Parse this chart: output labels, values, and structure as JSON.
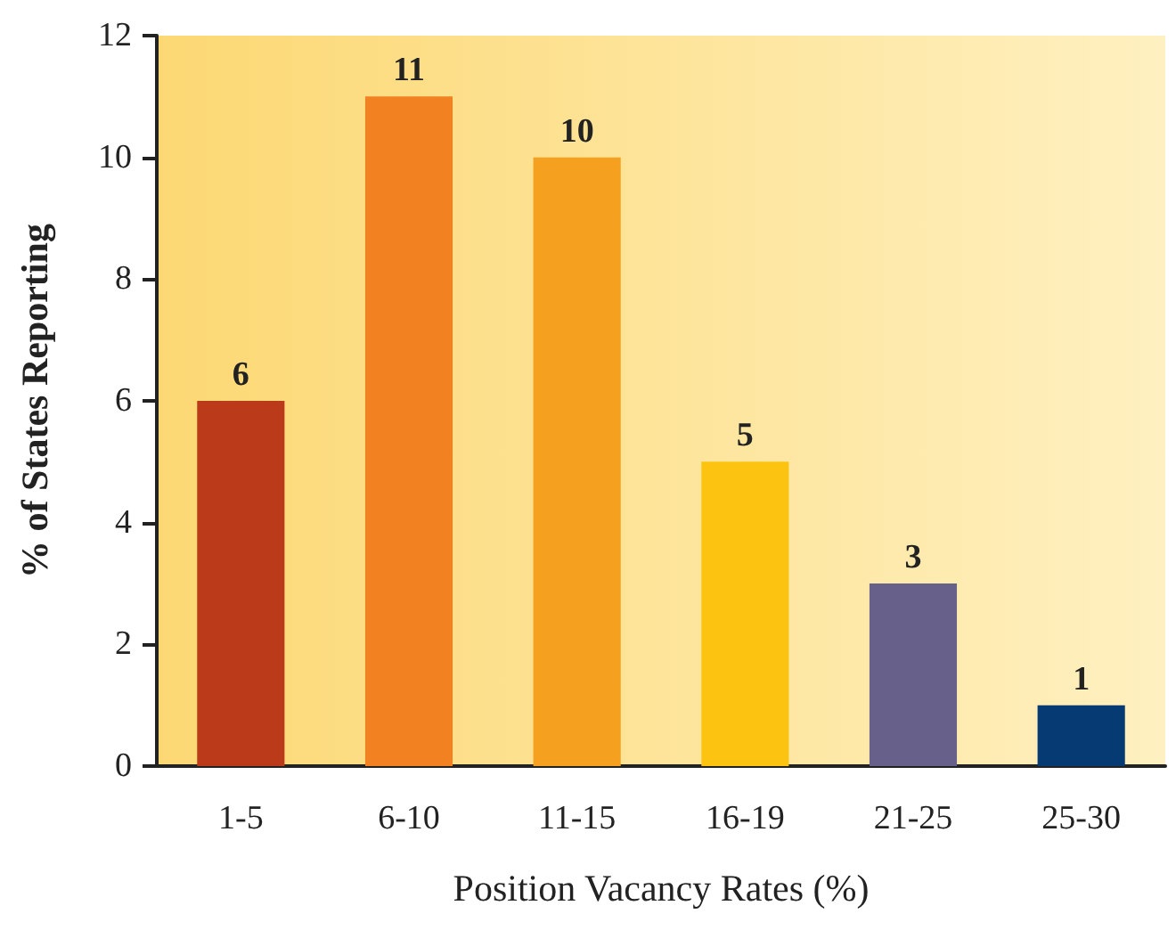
{
  "chart_data": {
    "type": "bar",
    "xlabel": "Position Vacancy Rates (%)",
    "ylabel": "% of States Reporting",
    "categories": [
      "1-5",
      "6-10",
      "11-15",
      "16-19",
      "21-25",
      "25-30"
    ],
    "values": [
      6,
      11,
      10,
      5,
      3,
      1
    ],
    "colors": [
      "#bb3a1a",
      "#f28122",
      "#f5a01e",
      "#fcc410",
      "#66608a",
      "#053a73"
    ],
    "ylim": [
      0,
      12
    ],
    "yticks": [
      0,
      2,
      4,
      6,
      8,
      10,
      12
    ],
    "grid": false,
    "data_labels": true
  }
}
